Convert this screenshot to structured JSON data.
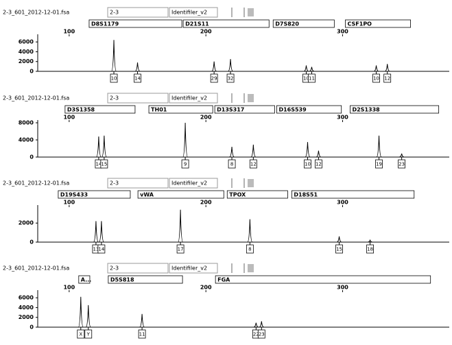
{
  "chart_data": [
    {
      "type": "electropherogram",
      "file": "2-3_601_2012-12-01.fsa",
      "sample": "2-3",
      "panel": "Identifiler_v2",
      "loci": [
        {
          "name": "D8S1179",
          "range": [
            114.6,
            182.4
          ]
        },
        {
          "name": "D21S11",
          "range": [
            183.4,
            246.2
          ]
        },
        {
          "name": "D7S820",
          "range": [
            249.2,
            293.9
          ]
        },
        {
          "name": "CSF1PO",
          "range": [
            302,
            349.7
          ]
        }
      ],
      "xlim": [
        77,
        378
      ],
      "xticks": [
        100,
        200,
        300
      ],
      "ylim": [
        0,
        7000
      ],
      "yticks": [
        0,
        2000,
        4000,
        6000
      ],
      "peaks": {
        "x": [
          132.7,
          150,
          206,
          218,
          273.4,
          277.4,
          324.6,
          332.7
        ],
        "values": [
          6400,
          1800,
          2000,
          2500,
          1200,
          900,
          1200,
          1500
        ],
        "labels": [
          "10",
          "14",
          "29",
          "32",
          "10",
          "11",
          "10",
          "12"
        ]
      }
    },
    {
      "type": "electropherogram",
      "file": "2-3_601_2012-12-01.fsa",
      "sample": "2-3",
      "panel": "Identifiler_v2",
      "loci": [
        {
          "name": "D3S1358",
          "range": [
            97,
            148.2
          ]
        },
        {
          "name": "TH01",
          "range": [
            158.3,
            205
          ]
        },
        {
          "name": "D13S317",
          "range": [
            206.5,
            250.3
          ]
        },
        {
          "name": "D16S539",
          "range": [
            251.8,
            299.1
          ]
        },
        {
          "name": "D2S1338",
          "range": [
            305.5,
            370.3
          ]
        }
      ],
      "xlim": [
        77,
        378
      ],
      "xticks": [
        100,
        200,
        300
      ],
      "ylim": [
        0,
        8000
      ],
      "yticks": [
        0,
        4000,
        8000
      ],
      "peaks": {
        "x": [
          121.6,
          125.6,
          184.9,
          219,
          234.7,
          274.4,
          282.4,
          326.6,
          343.2
        ],
        "values": [
          4800,
          5000,
          8000,
          2400,
          2900,
          3500,
          1500,
          5000,
          800
        ],
        "labels": [
          "14",
          "15",
          "9",
          "8",
          "12",
          "10",
          "12",
          "19",
          "23"
        ]
      }
    },
    {
      "type": "electropherogram",
      "file": "2-3_601_2012-12-01.fsa",
      "sample": "2-3",
      "panel": "Identifiler_v2",
      "loci": [
        {
          "name": "D19S433",
          "range": [
            92,
            144.7
          ]
        },
        {
          "name": "vWA",
          "range": [
            150.3,
            213.1
          ]
        },
        {
          "name": "TPOX",
          "range": [
            215.6,
            259.8
          ]
        },
        {
          "name": "D18S51",
          "range": [
            262.8,
            352.3
          ]
        }
      ],
      "xlim": [
        77,
        378
      ],
      "xticks": [
        100,
        200,
        300
      ],
      "ylim": [
        0,
        3600
      ],
      "yticks": [
        0,
        2000
      ],
      "peaks": {
        "x": [
          119.6,
          123.6,
          181.4,
          232.2,
          297.5,
          320.1
        ],
        "values": [
          2200,
          2200,
          3400,
          2400,
          600,
          200
        ],
        "labels": [
          "13",
          "14",
          "17",
          "8",
          "15",
          "18"
        ]
      }
    },
    {
      "type": "electropherogram",
      "file": "2-3_601_2012-12-01.fsa",
      "sample": "2-3",
      "panel": "Identifiler_v2",
      "loci": [
        {
          "name": "A...",
          "range": [
            107,
            115.1
          ]
        },
        {
          "name": "D5S818",
          "range": [
            128.6,
            182.9
          ]
        },
        {
          "name": "FGA",
          "range": [
            207,
            364.3
          ]
        }
      ],
      "xlim": [
        77,
        378
      ],
      "xticks": [
        100,
        200,
        300
      ],
      "ylim": [
        0,
        7000
      ],
      "yticks": [
        0,
        2000,
        4000,
        6000
      ],
      "peaks": {
        "x": [
          108.5,
          114,
          153.3,
          236.7,
          240.7
        ],
        "values": [
          6200,
          4500,
          2700,
          900,
          1200
        ],
        "labels": [
          "X",
          "Y",
          "11",
          "22",
          "23"
        ]
      }
    }
  ]
}
